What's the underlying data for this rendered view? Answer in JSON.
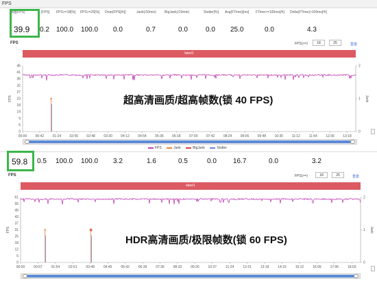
{
  "window": {
    "title": "FPS"
  },
  "stats_headers": [
    "Avg(FPS)",
    "[FPS]",
    "FPS>=18[%]",
    "FPS>=25[%]",
    "Drop(FPS[/h])",
    "Jank(/10min)",
    "BigJank(/10min)",
    "Stutter[%]",
    "Avg(FTime)[ms]",
    "FTime>=100ms[/h]",
    "Delta(FTime)>100ms[/h]"
  ],
  "stats_top": [
    "39.9",
    "0.2",
    "100.0",
    "100.0",
    "0.0",
    "0.7",
    "0.0",
    "0.0",
    "25.0",
    "0.0",
    "4.3"
  ],
  "stats_bottom": [
    "59.8",
    "0.5",
    "100.0",
    "100.0",
    "3.2",
    "1.6",
    "0.5",
    "0.0",
    "16.7",
    "0.0",
    "3.2"
  ],
  "section_title": "FPS",
  "filter": {
    "label": "FPS(>=)",
    "v1": "18",
    "v2": "25",
    "reset": "重置"
  },
  "banner_label": "label1",
  "legend": [
    {
      "name": "FPS",
      "color": "#c03fb4"
    },
    {
      "name": "Jank",
      "color": "#e8803a"
    },
    {
      "name": "BigJank",
      "color": "#d8443a"
    },
    {
      "name": "Stutter",
      "color": "#6a86d8"
    }
  ],
  "overlay_top": "超高清画质/超高帧数(锁 40 FPS)",
  "overlay_bottom": "HDR高清画质/极限帧数(锁 60 FPS)",
  "chart_data": [
    {
      "type": "line",
      "title": "",
      "ylabel": "FPS",
      "y2label": "Jank",
      "y_ticks": [
        "0",
        "5",
        "9",
        "14",
        "18",
        "23",
        "27",
        "32",
        "36",
        "41",
        "46"
      ],
      "y2_ticks": [
        "0",
        "1",
        "2"
      ],
      "ylim": [
        0,
        46
      ],
      "y2lim": [
        0,
        2
      ],
      "x_ticks": [
        "00:00",
        "00:42",
        "01:24",
        "02:06",
        "02:48",
        "03:30",
        "04:12",
        "04:54",
        "05:36",
        "06:18",
        "07:00",
        "07:42",
        "08:24",
        "09:06",
        "09:48",
        "10:30",
        "11:12",
        "11:54",
        "12:36",
        "13:18"
      ],
      "series": [
        {
          "name": "FPS",
          "baseline": 40
        },
        {
          "name": "Jank",
          "events": [
            {
              "x": "01:10",
              "value": 1
            }
          ]
        }
      ]
    },
    {
      "type": "line",
      "title": "",
      "ylabel": "FPS",
      "y2label": "Jank",
      "y_ticks": [
        "0",
        "6",
        "12",
        "18",
        "25",
        "31",
        "37",
        "43",
        "49",
        "55",
        "61"
      ],
      "y2_ticks": [
        "0",
        "1",
        "2"
      ],
      "ylim": [
        0,
        61
      ],
      "y2lim": [
        0,
        2
      ],
      "x_ticks": [
        "00:00",
        "00:57",
        "01:54",
        "02:51",
        "03:48",
        "04:45",
        "05:42",
        "06:39",
        "07:36",
        "08:33",
        "09:30",
        "10:27",
        "11:24",
        "12:21",
        "13:18",
        "14:15",
        "15:12",
        "16:09",
        "17:06",
        "18:03"
      ],
      "series": [
        {
          "name": "FPS",
          "baseline": 60
        },
        {
          "name": "Jank",
          "events": [
            {
              "x": "01:20",
              "value": 1
            },
            {
              "x": "03:50",
              "value": 1
            }
          ]
        },
        {
          "name": "BigJank",
          "events": [
            {
              "x": "03:50",
              "value": 1
            }
          ]
        }
      ]
    }
  ]
}
